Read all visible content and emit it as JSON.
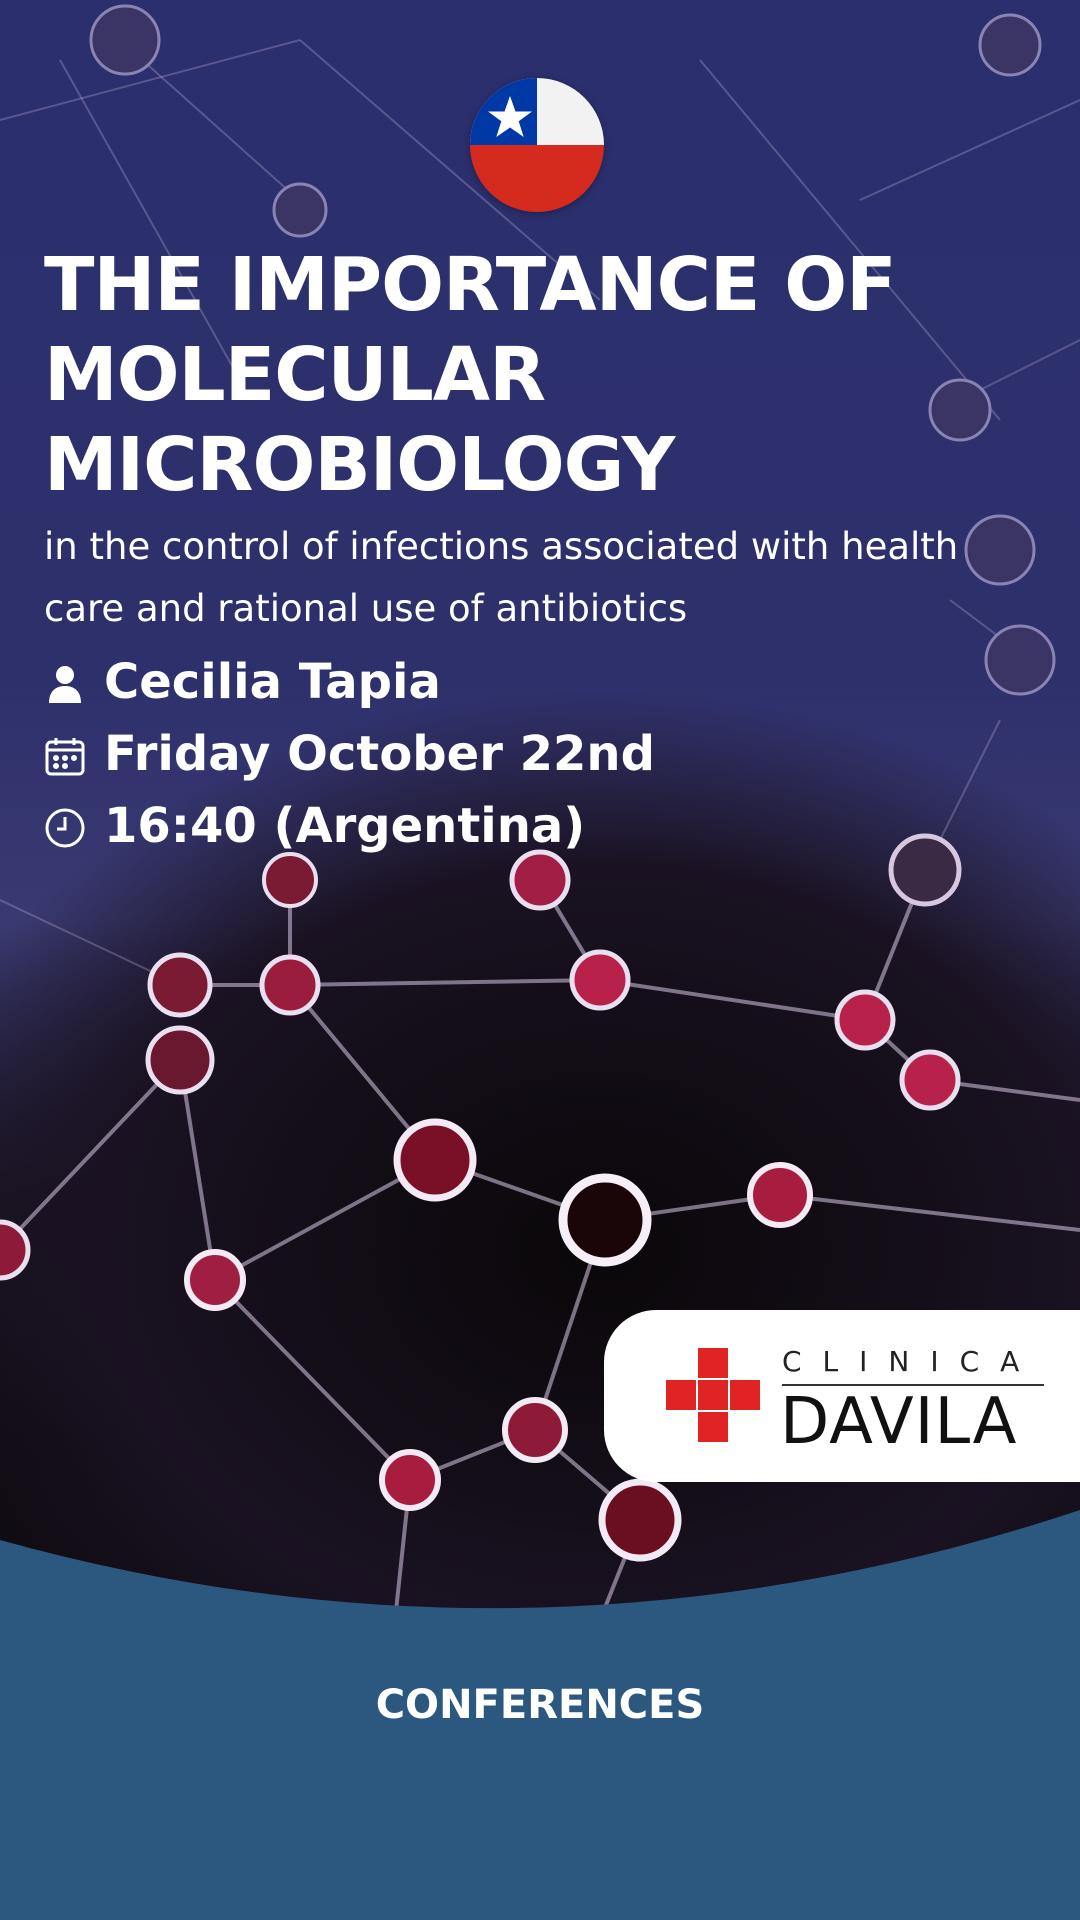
{
  "title": "THE IMPORTANCE OF MOLECULAR MICROBIOLOGY",
  "subtitle": "in the control of infections associated with health care and rational use of antibiotics",
  "speaker": "Cecilia Tapia",
  "date": "Friday October 22nd",
  "time": "16:40 (Argentina)",
  "logo": {
    "top": "CLINICA",
    "main": "DAVILA"
  },
  "footer_label": "CONFERENCES",
  "icons": {
    "flag": "chile-flag-icon",
    "speaker": "person-icon",
    "date": "calendar-icon",
    "time": "clock-icon",
    "logo": "red-cross-icon"
  },
  "colors": {
    "header_bg": "#2b2f6e",
    "footer_bg": "#2c5880",
    "flag_red": "#d52b1e",
    "flag_blue": "#0039a6",
    "logo_red": "#e02424"
  }
}
